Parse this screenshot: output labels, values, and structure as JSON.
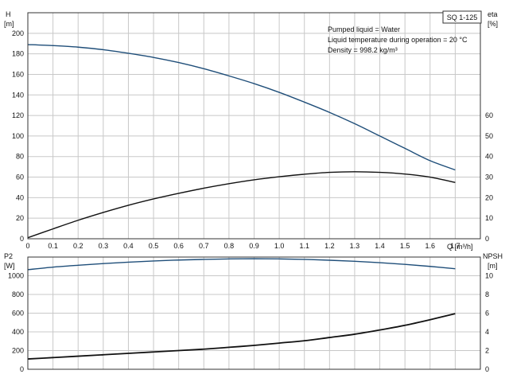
{
  "model_label": "SQ 1-125",
  "info_lines": [
    "Pumped liquid = Water",
    "Liquid temperature during operation = 20 °C",
    "Density = 998.2 kg/m³"
  ],
  "colors": {
    "blue_curve": "#1f4e79",
    "black_curve": "#111111",
    "grid": "#c8c8c8"
  },
  "chart_data": [
    {
      "type": "line",
      "panel": "top",
      "xlabel": "Q [m³/h]",
      "xlim": [
        0,
        1.8
      ],
      "xticks": [
        0,
        0.1,
        0.2,
        0.3,
        0.4,
        0.5,
        0.6,
        0.7,
        0.8,
        0.9,
        1.0,
        1.1,
        1.2,
        1.3,
        1.4,
        1.5,
        1.6,
        1.7
      ],
      "ylabel_left": "H",
      "ylabel_left_unit": "[m]",
      "ylim_left": [
        0,
        220
      ],
      "yticks_left": [
        0,
        20,
        40,
        60,
        80,
        100,
        120,
        140,
        160,
        180,
        200
      ],
      "ylabel_right": "eta",
      "ylabel_right_unit": "[%]",
      "ylim_right": [
        0,
        110
      ],
      "yticks_right": [
        0,
        10,
        20,
        30,
        40,
        50,
        60
      ],
      "grid": true,
      "series": [
        {
          "axis": "left",
          "color": "blue",
          "x": [
            0,
            0.1,
            0.2,
            0.3,
            0.4,
            0.5,
            0.6,
            0.7,
            0.8,
            0.9,
            1.0,
            1.1,
            1.2,
            1.3,
            1.4,
            1.5,
            1.6,
            1.7
          ],
          "y": [
            189,
            188,
            186.5,
            184,
            180.5,
            176.5,
            171.5,
            165.5,
            158.5,
            151,
            142.5,
            133,
            123,
            112,
            100,
            88,
            76,
            67
          ]
        },
        {
          "axis": "right",
          "color": "black",
          "x": [
            0,
            0.1,
            0.2,
            0.3,
            0.4,
            0.5,
            0.6,
            0.7,
            0.8,
            0.9,
            1.0,
            1.1,
            1.2,
            1.3,
            1.4,
            1.5,
            1.6,
            1.7
          ],
          "y": [
            0.5,
            4.8,
            9,
            12.8,
            16.3,
            19.4,
            22.1,
            24.6,
            26.8,
            28.7,
            30.2,
            31.4,
            32.3,
            32.6,
            32.3,
            31.5,
            30,
            27.4
          ]
        }
      ]
    },
    {
      "type": "line",
      "panel": "bottom",
      "xlim": [
        0,
        1.8
      ],
      "ylabel_left": "P2",
      "ylabel_left_unit": "[W]",
      "ylim_left": [
        0,
        1200
      ],
      "yticks_left": [
        0,
        200,
        400,
        600,
        800,
        1000
      ],
      "ylabel_right": "NPSH",
      "ylabel_right_unit": "[m]",
      "ylim_right": [
        0,
        12
      ],
      "yticks_right": [
        0,
        2,
        4,
        6,
        8,
        10
      ],
      "grid": true,
      "series": [
        {
          "axis": "left",
          "color": "blue",
          "x": [
            0,
            0.1,
            0.2,
            0.3,
            0.4,
            0.5,
            0.6,
            0.7,
            0.8,
            0.9,
            1.0,
            1.1,
            1.2,
            1.3,
            1.4,
            1.5,
            1.6,
            1.7
          ],
          "y": [
            1065,
            1092,
            1112,
            1130,
            1145,
            1158,
            1168,
            1175,
            1180,
            1182,
            1180,
            1175,
            1166,
            1155,
            1140,
            1122,
            1100,
            1075
          ]
        },
        {
          "axis": "right",
          "color": "black",
          "x": [
            0,
            0.1,
            0.2,
            0.3,
            0.4,
            0.5,
            0.6,
            0.7,
            0.8,
            0.9,
            1.0,
            1.1,
            1.2,
            1.3,
            1.4,
            1.5,
            1.6,
            1.7
          ],
          "y": [
            1.1,
            1.25,
            1.4,
            1.55,
            1.7,
            1.85,
            2.0,
            2.15,
            2.35,
            2.55,
            2.8,
            3.05,
            3.4,
            3.75,
            4.2,
            4.7,
            5.3,
            5.95
          ]
        }
      ]
    }
  ]
}
